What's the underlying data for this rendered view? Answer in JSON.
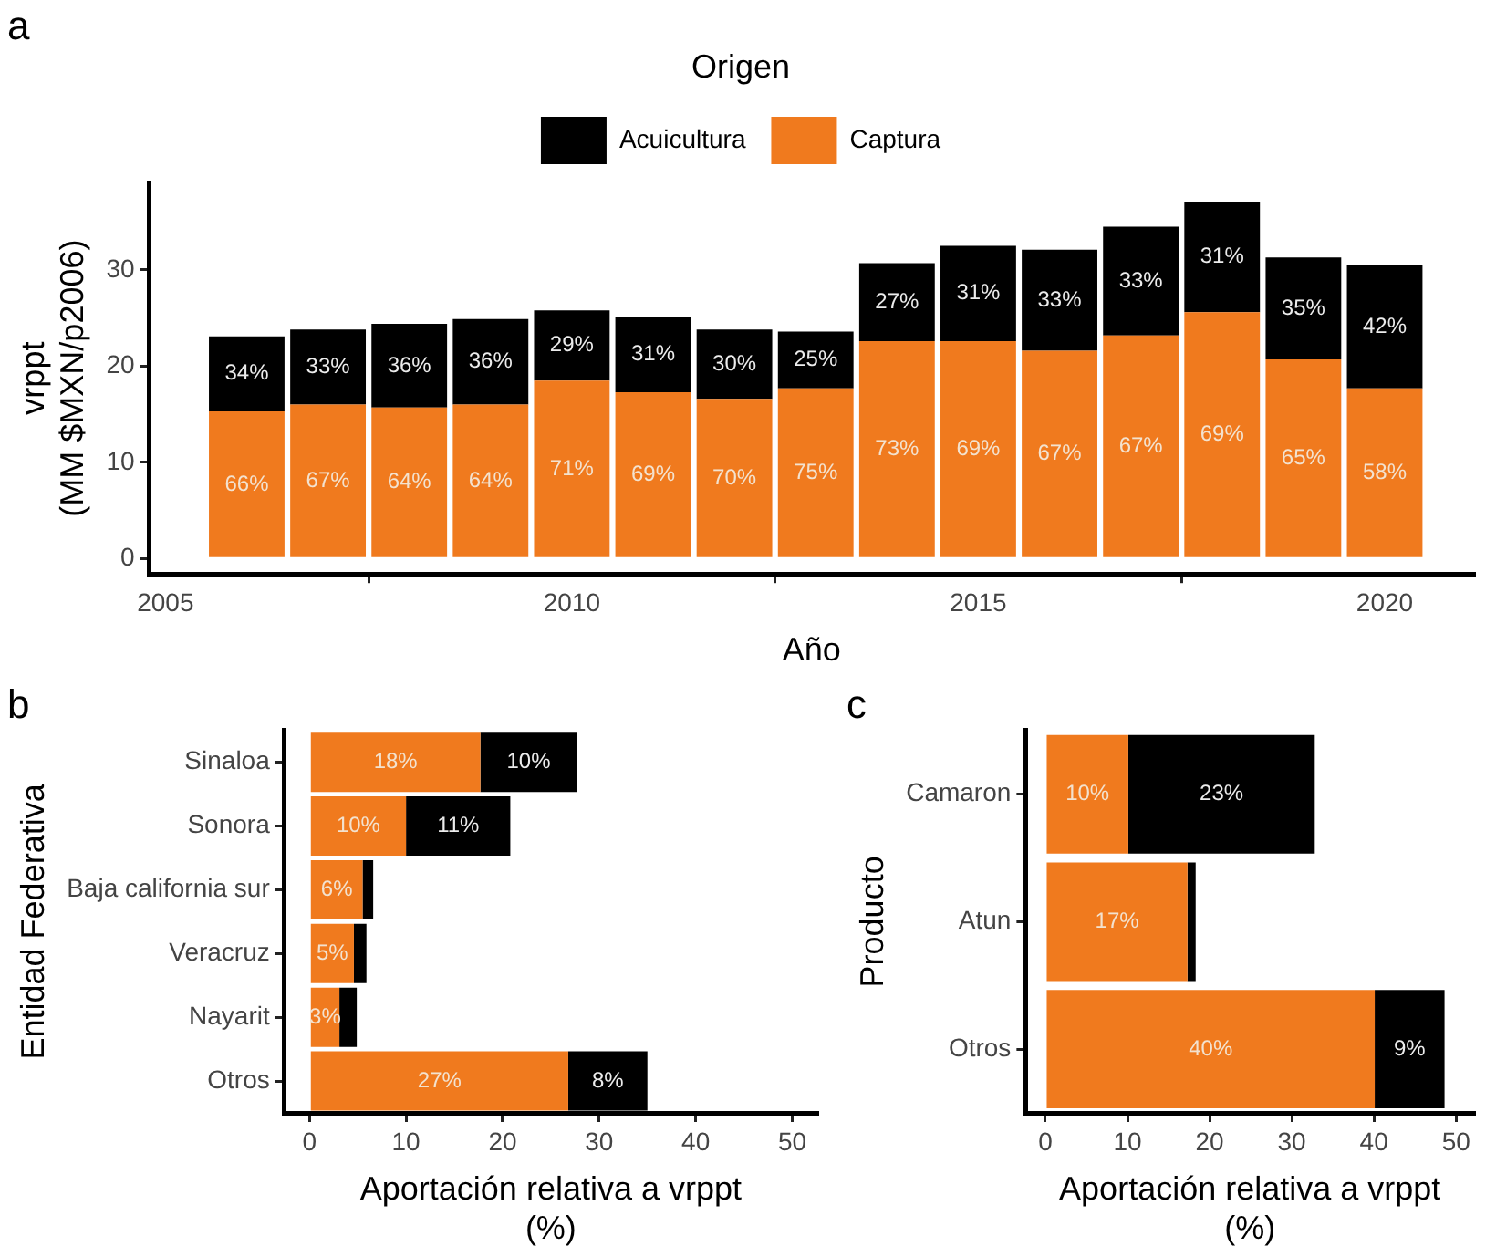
{
  "chart_data": [
    {
      "type": "bar",
      "title": "a",
      "xlabel": "Año",
      "ylabel": "vrppt\n(MM $MXN/p2006)",
      "legend_title": "Origen",
      "legend": "top",
      "grid": false,
      "stacked": true,
      "x": [
        2006,
        2007,
        2008,
        2009,
        2010,
        2011,
        2012,
        2013,
        2014,
        2015,
        2016,
        2017,
        2018,
        2019,
        2020
      ],
      "xlim": [
        2004.8,
        2021.1
      ],
      "xticks": [
        2005,
        2010,
        2015,
        2020
      ],
      "ylim": [
        -1.6,
        39.1
      ],
      "yticks": [
        0,
        10,
        20,
        30
      ],
      "series": [
        {
          "name": "Captura",
          "color": "#f07a1e",
          "values": [
            15.3,
            16.0,
            15.7,
            16.0,
            18.5,
            17.3,
            16.6,
            17.7,
            22.6,
            22.6,
            21.6,
            23.2,
            25.6,
            20.7,
            17.7
          ]
        },
        {
          "name": "Acuicultura",
          "color": "#000000",
          "values": [
            7.8,
            7.8,
            8.7,
            8.9,
            7.3,
            7.8,
            7.2,
            5.9,
            8.1,
            9.9,
            10.5,
            11.3,
            11.5,
            10.6,
            12.8
          ]
        }
      ],
      "annotations": [
        "66%",
        "67%",
        "64%",
        "64%",
        "71%",
        "69%",
        "70%",
        "75%",
        "73%",
        "69%",
        "67%",
        "67%",
        "69%",
        "65%",
        "58%",
        "34%",
        "33%",
        "36%",
        "36%",
        "29%",
        "31%",
        "30%",
        "25%",
        "27%",
        "31%",
        "33%",
        "33%",
        "31%",
        "35%",
        "42%"
      ]
    },
    {
      "type": "bar",
      "title": "b",
      "orientation": "horizontal",
      "stacked": true,
      "grid": false,
      "xlabel": "Aportación relativa a vrppt\n(%)",
      "ylabel": "Entidad Federativa",
      "categories": [
        "Sinaloa",
        "Sonora",
        "Baja california sur",
        "Veracruz",
        "Nayarit",
        "Otros"
      ],
      "xlim": [
        -2.6,
        52.6
      ],
      "xticks": [
        0,
        10,
        20,
        30,
        40,
        50
      ],
      "series": [
        {
          "color": "#f07a1e",
          "values": [
            17.7,
            10.0,
            5.5,
            4.6,
            3.1,
            26.8
          ],
          "value_labels": [
            "18%",
            "10%",
            "6%",
            "5%",
            "3%",
            "27%"
          ]
        },
        {
          "color": "#000000",
          "values": [
            10.0,
            10.8,
            1.1,
            1.3,
            1.8,
            8.2
          ],
          "value_labels": [
            "10%",
            "11%",
            null,
            null,
            null,
            "8%"
          ]
        }
      ]
    },
    {
      "type": "bar",
      "title": "c",
      "orientation": "horizontal",
      "stacked": true,
      "grid": false,
      "xlabel": "Aportación relativa a vrppt\n(%)",
      "ylabel": "Producto",
      "categories": [
        "Camaron",
        "Atun",
        "Otros"
      ],
      "xlim": [
        -2.4,
        52.2
      ],
      "xticks": [
        0,
        10,
        20,
        30,
        40,
        50
      ],
      "series": [
        {
          "color": "#f07a1e",
          "values": [
            10.1,
            17.3,
            40.1
          ],
          "value_labels": [
            "10%",
            "17%",
            "40%"
          ]
        },
        {
          "color": "#000000",
          "values": [
            22.7,
            1.0,
            8.5
          ],
          "value_labels": [
            "23%",
            null,
            "9%"
          ]
        }
      ]
    }
  ]
}
